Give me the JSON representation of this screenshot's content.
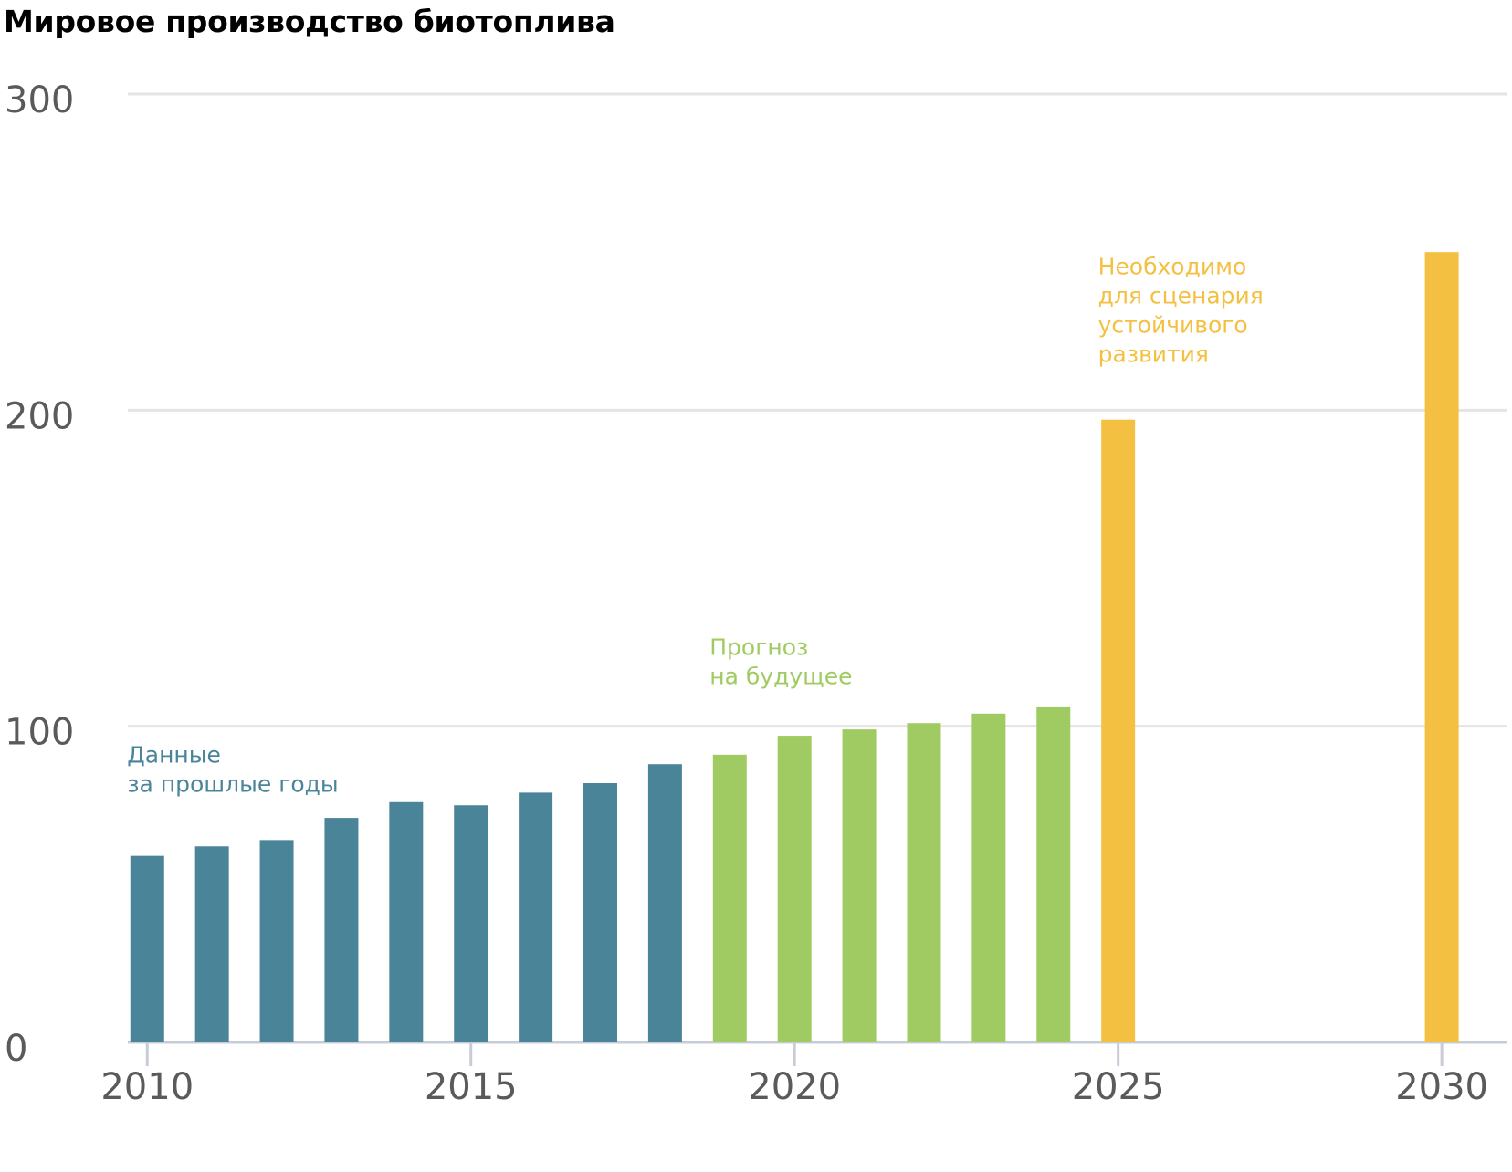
{
  "chart_data": {
    "type": "bar",
    "title": "Мировое производство биотоплива",
    "xlabel": "",
    "ylabel": "",
    "ylim": [
      0,
      300
    ],
    "yticks": [
      0,
      100,
      200,
      300
    ],
    "xticks": [
      "2010",
      "2015",
      "2020",
      "2025",
      "2030"
    ],
    "xlim": [
      2009.7,
      2031.0
    ],
    "grid": true,
    "series": [
      {
        "name": "Данные за прошлые годы",
        "color": "#4a8499",
        "points": [
          {
            "x": 2010,
            "y": 59
          },
          {
            "x": 2011,
            "y": 62
          },
          {
            "x": 2012,
            "y": 64
          },
          {
            "x": 2013,
            "y": 71
          },
          {
            "x": 2014,
            "y": 76
          },
          {
            "x": 2015,
            "y": 75
          },
          {
            "x": 2016,
            "y": 79
          },
          {
            "x": 2017,
            "y": 82
          },
          {
            "x": 2018,
            "y": 88
          }
        ]
      },
      {
        "name": "Прогноз на будущее",
        "color": "#a0cb62",
        "points": [
          {
            "x": 2019,
            "y": 91
          },
          {
            "x": 2020,
            "y": 97
          },
          {
            "x": 2021,
            "y": 99
          },
          {
            "x": 2022,
            "y": 101
          },
          {
            "x": 2023,
            "y": 104
          },
          {
            "x": 2024,
            "y": 106
          }
        ]
      },
      {
        "name": "Необходимо для сценария устойчивого развития",
        "color": "#f4c042",
        "points": [
          {
            "x": 2025,
            "y": 197
          },
          {
            "x": 2030,
            "y": 250
          }
        ]
      }
    ],
    "annotations": [
      {
        "series": 0,
        "lines": [
          "Данные",
          "за прошлые годы"
        ],
        "anchor_x": 2009.95,
        "anchor_y": 88.5
      },
      {
        "series": 1,
        "lines": [
          "Прогноз",
          "на будущее"
        ],
        "anchor_x": 2018.95,
        "anchor_y": 122.5
      },
      {
        "series": 2,
        "lines": [
          "Необходимо",
          "для сценария",
          "устойчивого",
          "развития"
        ],
        "anchor_x": 2024.95,
        "anchor_y": 243
      }
    ]
  }
}
